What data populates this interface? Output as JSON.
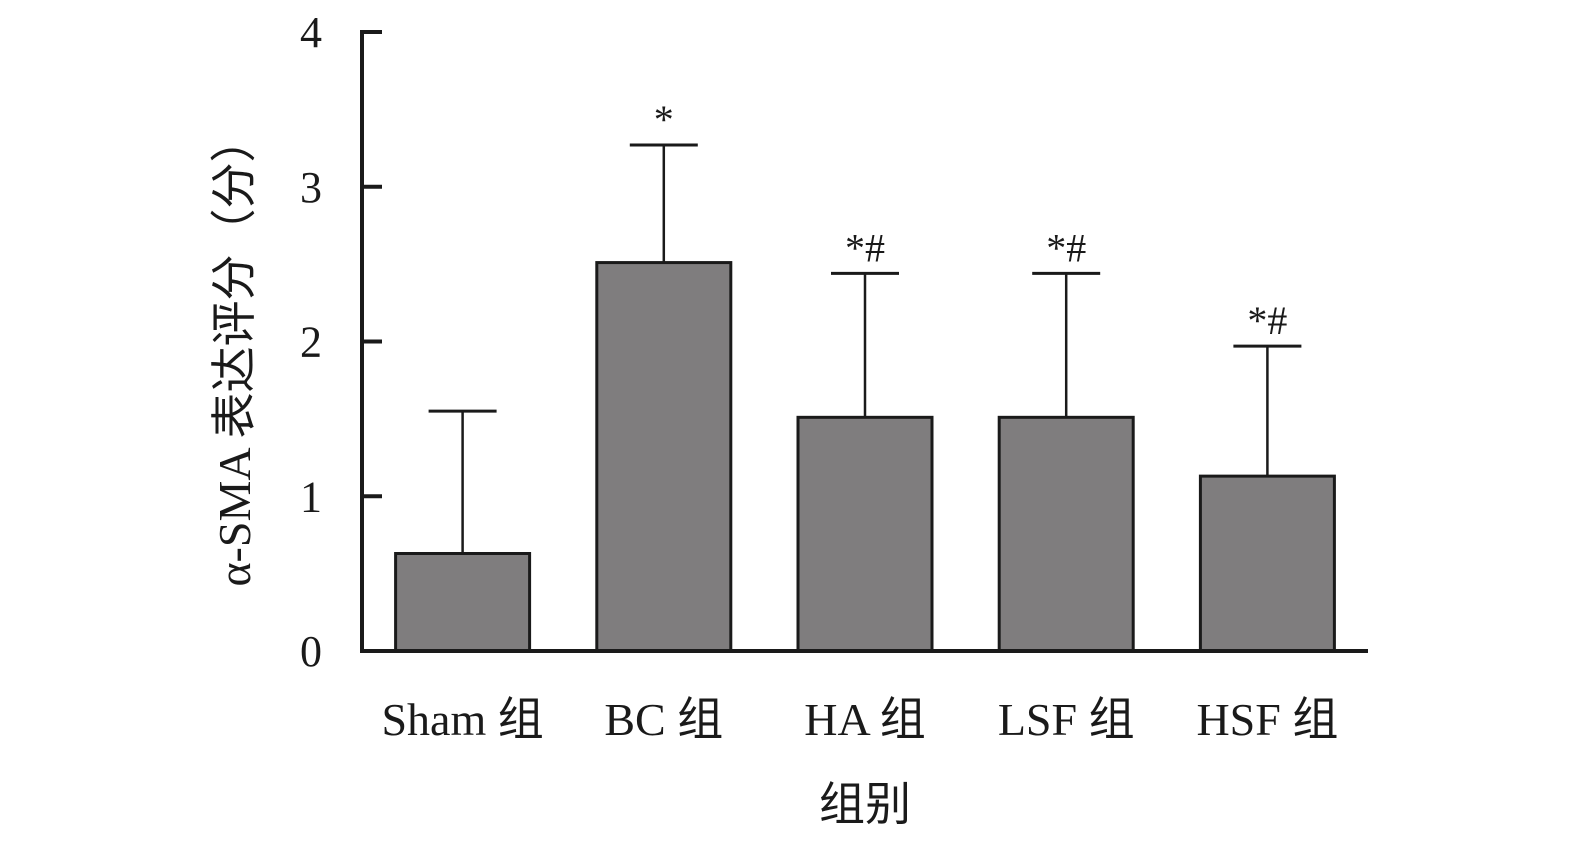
{
  "chart_data": {
    "type": "bar",
    "title": "",
    "xlabel": "组别",
    "ylabel": "α-SMA 表达评分（分）",
    "ylim": [
      0,
      4
    ],
    "yticks": [
      0,
      1,
      2,
      3,
      4
    ],
    "categories": [
      "Sham 组",
      "BC 组",
      "HA 组",
      "LSF 组",
      "HSF 组"
    ],
    "values": [
      0.63,
      2.51,
      1.51,
      1.51,
      1.13
    ],
    "errors": [
      0.92,
      0.76,
      0.93,
      0.93,
      0.84
    ],
    "significance": [
      "",
      "*",
      "*#",
      "*#",
      "*#"
    ],
    "grid": false,
    "legend": "none",
    "colors": {
      "bar": "#7f7d7e",
      "stroke": "#1a1a1a"
    }
  }
}
